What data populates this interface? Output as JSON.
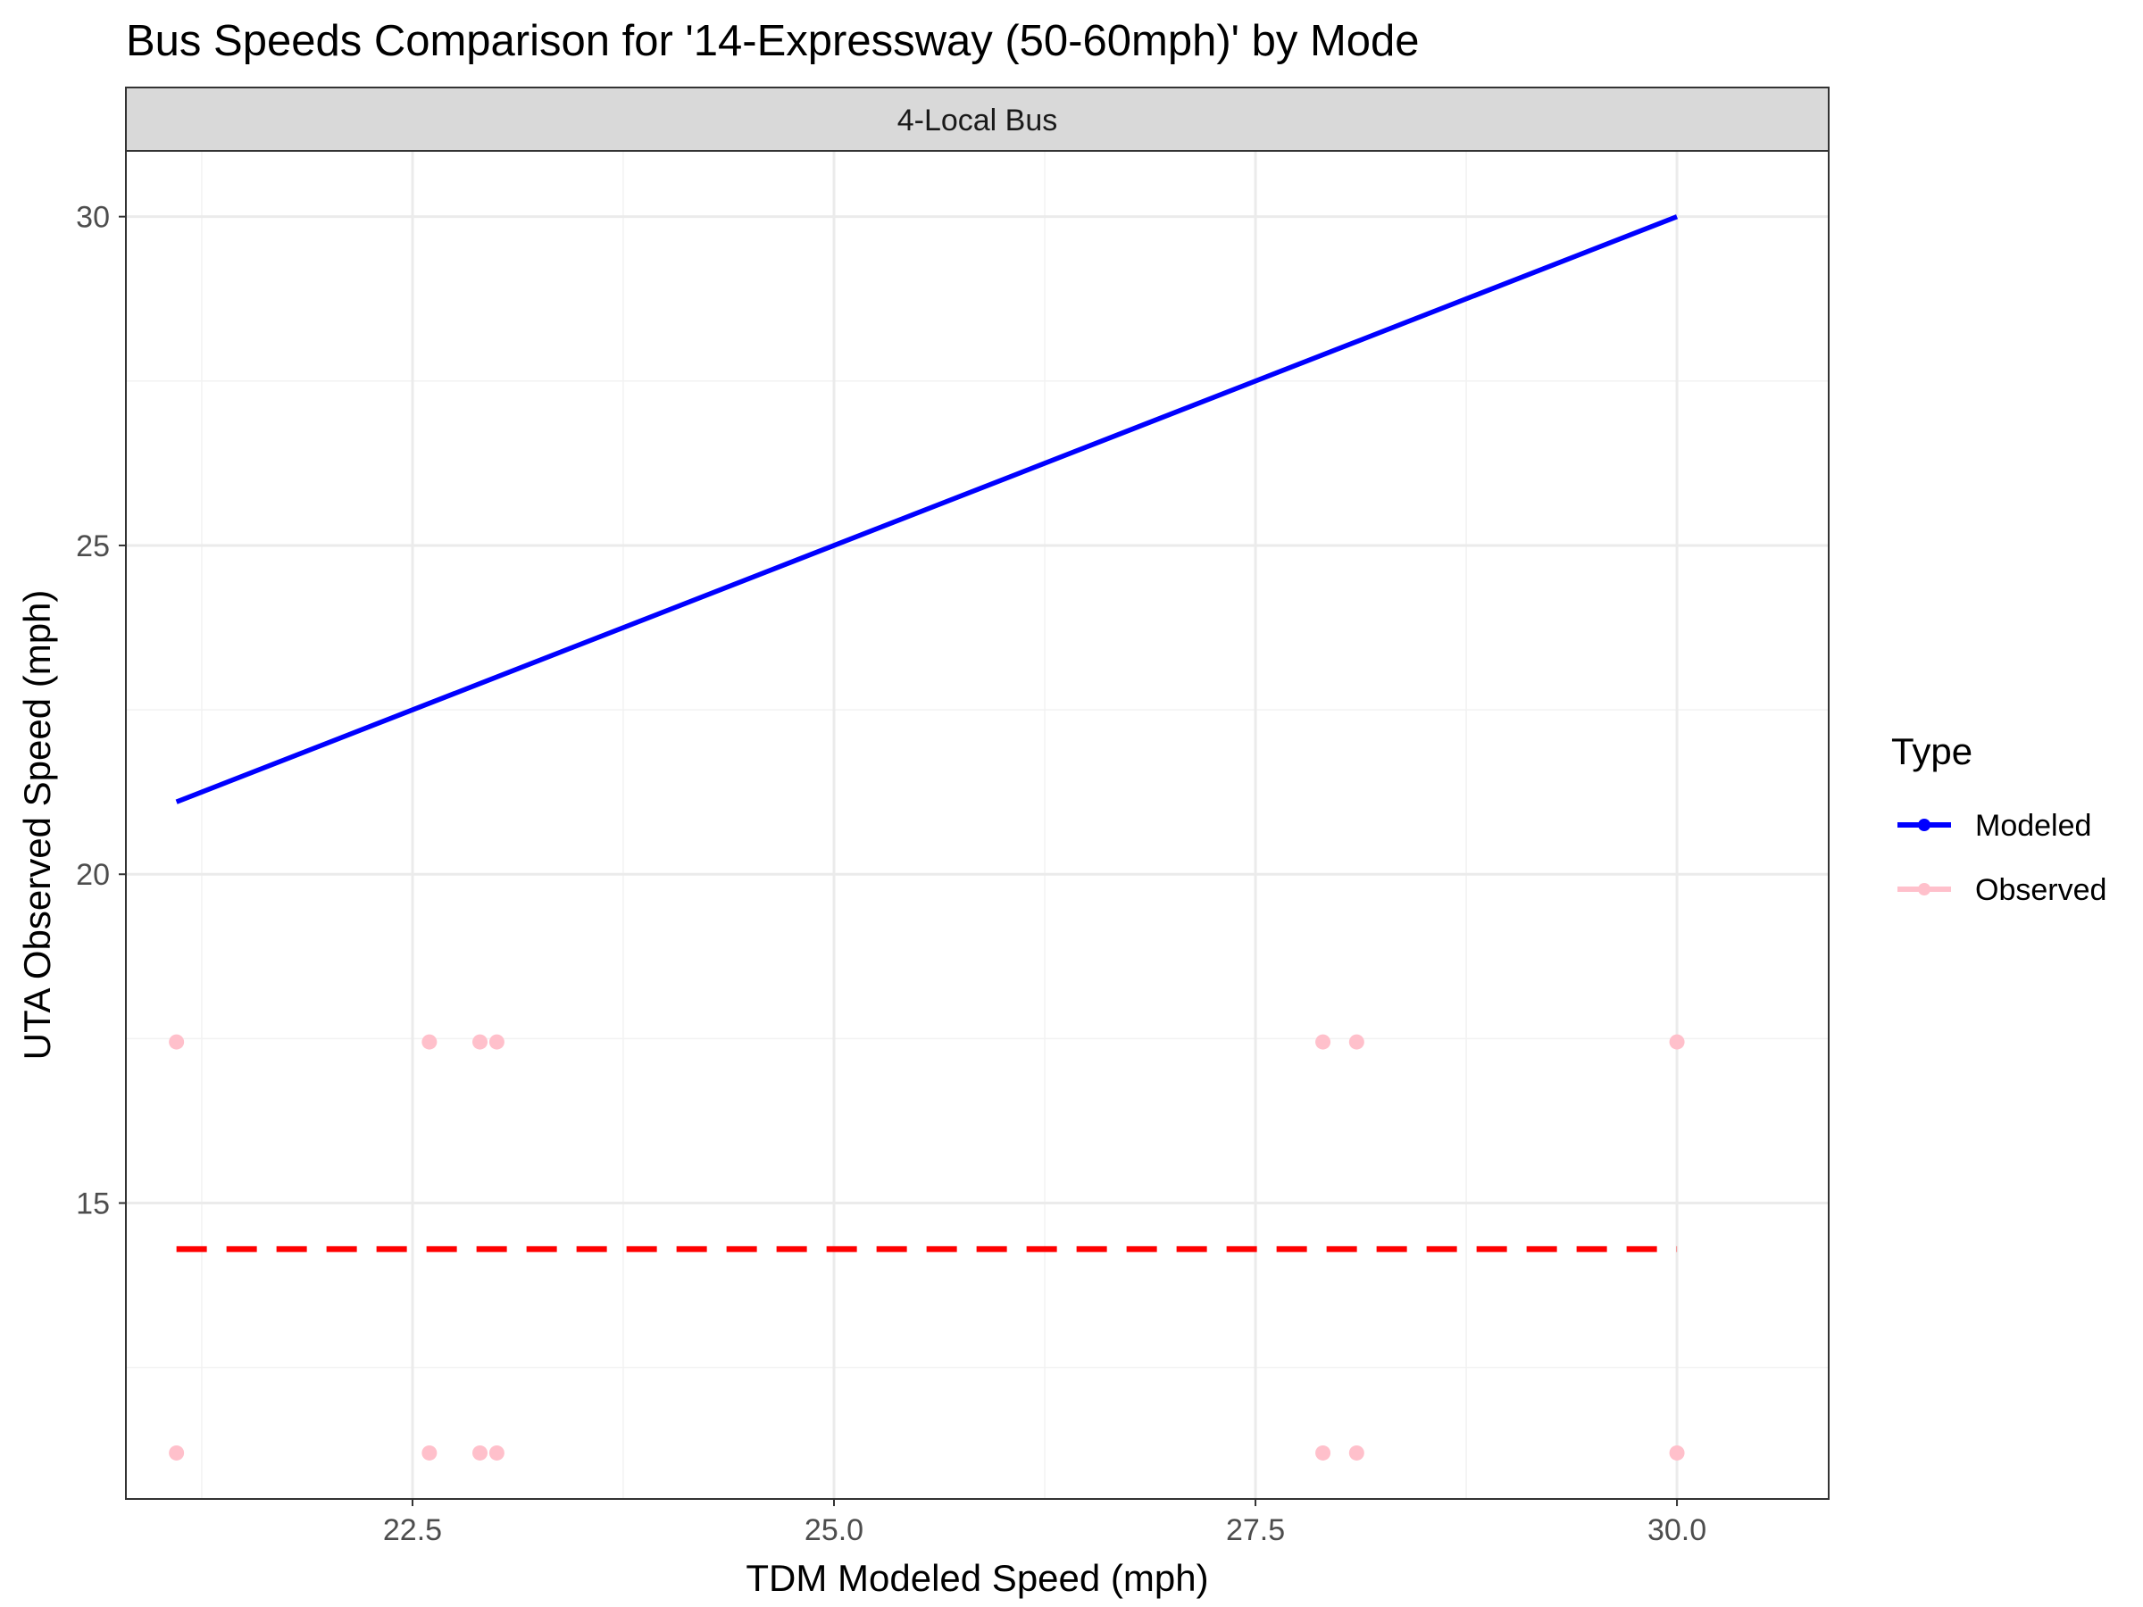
{
  "chart_data": {
    "type": "scatter",
    "title": "Bus Speeds Comparison for '14-Expressway (50-60mph)' by Mode",
    "facet_label": "4-Local Bus",
    "xlabel": "TDM Modeled Speed (mph)",
    "ylabel": "UTA Observed Speed (mph)",
    "xlim": [
      20.8,
      30.9
    ],
    "ylim": [
      10.5,
      31.0
    ],
    "x_ticks": [
      22.5,
      25.0,
      27.5,
      30.0
    ],
    "x_tick_labels": [
      "22.5",
      "25.0",
      "27.5",
      "30.0"
    ],
    "y_ticks": [
      15,
      20,
      25,
      30
    ],
    "y_tick_labels": [
      "15",
      "20",
      "25",
      "30"
    ],
    "grid": true,
    "legend": {
      "title": "Type",
      "placement": "right",
      "entries": [
        {
          "label": "Modeled",
          "color": "#0000FF"
        },
        {
          "label": "Observed",
          "color": "#FFC0CB"
        }
      ]
    },
    "series": [
      {
        "name": "Modeled",
        "color": "#0000FF",
        "style": "solid-line",
        "x": [
          21.1,
          30.0
        ],
        "y": [
          21.1,
          30.0
        ]
      },
      {
        "name": "Observed",
        "color": "#FFC0CB",
        "style": "points",
        "x": [
          21.1,
          22.6,
          22.9,
          23.0,
          27.9,
          28.1,
          30.0,
          21.1,
          22.6,
          22.9,
          23.0,
          27.9,
          28.1,
          30.0
        ],
        "y": [
          17.45,
          17.45,
          17.45,
          17.45,
          17.45,
          17.45,
          17.45,
          11.2,
          11.2,
          11.2,
          11.2,
          11.2,
          11.2,
          11.2
        ]
      }
    ],
    "reference_line": {
      "color": "#FF0000",
      "style": "dashed",
      "x": [
        21.1,
        30.0
      ],
      "y": 14.3
    }
  }
}
